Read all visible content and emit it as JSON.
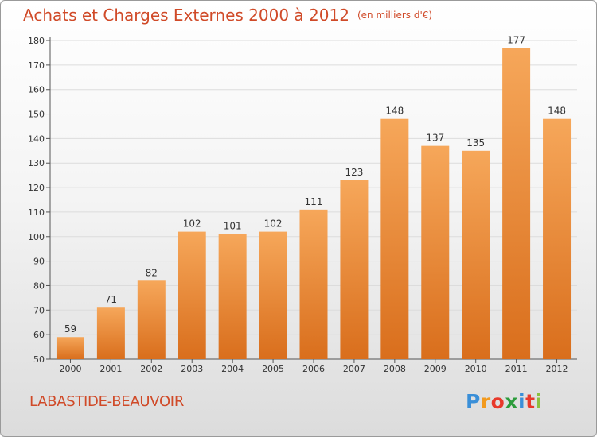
{
  "header": {
    "title": "Achats et Charges Externes 2000 à 2012",
    "unit": "(en milliers d'€)"
  },
  "footer": {
    "city": "LABASTIDE-BEAUVOIR",
    "brand": [
      "P",
      "r",
      "o",
      "x",
      "i",
      "t",
      "i"
    ],
    "brand_colors": [
      "#3a8fd8",
      "#f29a1e",
      "#e8392b",
      "#2d9c3c",
      "#3a8fd8",
      "#e8392b",
      "#8bc13f"
    ]
  },
  "colors": {
    "bar_light": "#f6a75a",
    "bar_dark": "#d96e1c",
    "title": "#d04a28",
    "grid": "#dcdcdc",
    "axis_text": "#333333"
  },
  "chart_data": {
    "type": "bar",
    "title": "Achats et Charges Externes 2000 à 2012",
    "categories": [
      "2000",
      "2001",
      "2002",
      "2003",
      "2004",
      "2005",
      "2006",
      "2007",
      "2008",
      "2009",
      "2010",
      "2011",
      "2012"
    ],
    "values": [
      59,
      71,
      82,
      102,
      101,
      102,
      111,
      123,
      148,
      137,
      135,
      177,
      148
    ],
    "ylim": [
      50,
      180
    ],
    "yticks": [
      50,
      60,
      70,
      80,
      90,
      100,
      110,
      120,
      130,
      140,
      150,
      160,
      170,
      180
    ],
    "grid": true,
    "data_labels": true
  }
}
